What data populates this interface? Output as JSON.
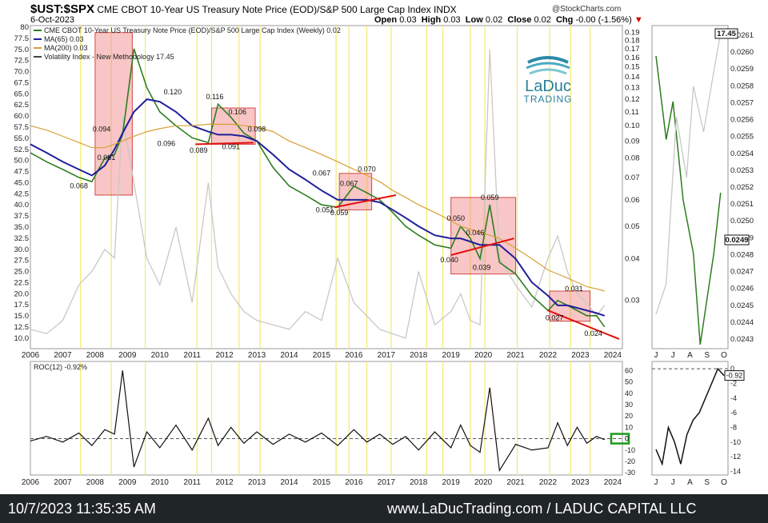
{
  "header": {
    "symbol": "$UST:$SPX",
    "title": "CME CBOT 10-Year US Treasury Note Price (EOD)/S&P 500 Large Cap Index INDX",
    "date": "6-Oct-2023",
    "ohlc": {
      "open_label": "Open",
      "open": "0.03",
      "high_label": "High",
      "high": "0.03",
      "low_label": "Low",
      "low": "0.02",
      "close_label": "Close",
      "close": "0.02",
      "chg_label": "Chg",
      "chg": "-0.00 (-1.56%)"
    },
    "source": "@StockCharts.com"
  },
  "logo": {
    "line1": "LaDuc",
    "line2": "TRADING"
  },
  "colors": {
    "ratio": "#2e7d1f",
    "ma65": "#1f1f9a",
    "ma200": "#d9a036",
    "vix": "#c8c8c8",
    "box": "#f08080",
    "vline": "#f2ea70",
    "trend": "#e01010"
  },
  "legend": [
    {
      "label": "CME CBOT 10-Year US Treasury Note Price (EOD)/S&P 500 Large Cap Index (Weekly) 0.02",
      "color": "#2e7d1f"
    },
    {
      "label": "MA(65) 0.03",
      "color": "#1f1f9a"
    },
    {
      "label": "MA(200) 0.03",
      "color": "#d9a036"
    },
    {
      "label": "Volatility Index - New Methodology 17.45",
      "color": "#444444"
    }
  ],
  "roc": {
    "label": "ROC(12) -0.92%",
    "value": "-0.92",
    "current_box": "0"
  },
  "side": {
    "last": "17.45",
    "ratio_last": "0.0249",
    "roc_last": "-0.92"
  },
  "footer": {
    "timestamp": "10/7/2023 11:35:35 AM",
    "site": "www.LaDucTrading.com / LADUC CAPITAL LLC"
  },
  "chart_data": [
    {
      "type": "line",
      "name": "main",
      "x": [
        2006,
        2006.5,
        2007,
        2007.5,
        2007.9,
        2008.3,
        2008.6,
        2008.85,
        2009.2,
        2009.6,
        2010,
        2010.5,
        2011,
        2011.5,
        2011.8,
        2012.2,
        2012.6,
        2013,
        2013.5,
        2014,
        2014.5,
        2015,
        2015.5,
        2016,
        2016.4,
        2016.8,
        2017.2,
        2017.6,
        2018,
        2018.5,
        2019,
        2019.3,
        2019.6,
        2019.9,
        2020.2,
        2020.5,
        2021,
        2021.5,
        2022,
        2022.3,
        2022.6,
        2022.9,
        2023.2,
        2023.5,
        2023.75
      ],
      "series": [
        {
          "name": "CME CBOT 10-Year US Treasury Note Price (EOD)/S&P 500 Large Cap Index (Weekly)",
          "values": [
            0.083,
            0.078,
            0.074,
            0.07,
            0.068,
            0.08,
            0.082,
            0.094,
            0.17,
            0.13,
            0.11,
            0.1,
            0.092,
            0.089,
            0.116,
            0.106,
            0.095,
            0.09,
            0.075,
            0.066,
            0.062,
            0.058,
            0.057,
            0.066,
            0.063,
            0.06,
            0.055,
            0.05,
            0.047,
            0.044,
            0.043,
            0.05,
            0.046,
            0.04,
            0.058,
            0.039,
            0.036,
            0.031,
            0.028,
            0.03,
            0.029,
            0.028,
            0.027,
            0.027,
            0.025
          ]
        },
        {
          "name": "MA(65)",
          "values": [
            0.088,
            0.083,
            0.078,
            0.074,
            0.071,
            0.076,
            0.085,
            0.095,
            0.11,
            0.12,
            0.118,
            0.11,
            0.1,
            0.096,
            0.094,
            0.094,
            0.093,
            0.09,
            0.082,
            0.074,
            0.069,
            0.064,
            0.06,
            0.06,
            0.06,
            0.059,
            0.056,
            0.053,
            0.05,
            0.047,
            0.046,
            0.046,
            0.045,
            0.044,
            0.044,
            0.044,
            0.04,
            0.034,
            0.031,
            0.029,
            0.029,
            0.0285,
            0.028,
            0.0275,
            0.027
          ]
        },
        {
          "name": "MA(200)",
          "values": [
            0.1,
            0.097,
            0.093,
            0.089,
            0.086,
            0.086,
            0.088,
            0.09,
            0.093,
            0.096,
            0.098,
            0.1,
            0.1,
            0.101,
            0.101,
            0.101,
            0.1,
            0.099,
            0.096,
            0.09,
            0.086,
            0.082,
            0.078,
            0.074,
            0.071,
            0.068,
            0.064,
            0.061,
            0.058,
            0.055,
            0.052,
            0.05,
            0.049,
            0.048,
            0.047,
            0.046,
            0.043,
            0.04,
            0.037,
            0.036,
            0.035,
            0.034,
            0.033,
            0.0325,
            0.032
          ]
        }
      ],
      "vix": {
        "name": "Volatility Index - New Methodology",
        "values": [
          12,
          11,
          14,
          22,
          25,
          30,
          28,
          60,
          45,
          28,
          22,
          35,
          18,
          45,
          26,
          20,
          16,
          14,
          13,
          12,
          16,
          14,
          28,
          18,
          15,
          12,
          11,
          10,
          25,
          13,
          16,
          20,
          14,
          13,
          75,
          28,
          22,
          17,
          28,
          33,
          25,
          20,
          18,
          15,
          17.45
        ]
      },
      "annotations": [
        "0.068",
        "0.081",
        "0.094",
        "0.120",
        "0.096",
        "0.089",
        "0.116",
        "0.091",
        "0.106",
        "0.098",
        "0.067",
        "0.051",
        "0.067",
        "0.070",
        "0.059",
        "0.050",
        "0.046",
        "0.059",
        "0.040",
        "0.039",
        "0.031",
        "0.027",
        "0.024"
      ],
      "left_ticks": [
        "80",
        "77.5",
        "75.0",
        "72.5",
        "70.0",
        "67.5",
        "65.0",
        "62.5",
        "60.0",
        "57.5",
        "55.0",
        "52.5",
        "50.0",
        "47.5",
        "45.0",
        "42.5",
        "40.0",
        "37.5",
        "35.0",
        "32.5",
        "30.0",
        "27.5",
        "25.0",
        "22.5",
        "20.0",
        "17.5",
        "15.0",
        "12.5",
        "10.0"
      ],
      "right_ticks": [
        "0.19",
        "0.18",
        "0.17",
        "0.16",
        "0.15",
        "0.14",
        "0.13",
        "0.12",
        "0.11",
        "0.10",
        "0.09",
        "0.08",
        "0.07",
        "0.06",
        "0.05",
        "0.04",
        "0.03"
      ],
      "x_ticks": [
        "2006",
        "2007",
        "2008",
        "2009",
        "2010",
        "2011",
        "2012",
        "2013",
        "2014",
        "2015",
        "2016",
        "2017",
        "2018",
        "2019",
        "2020",
        "2021",
        "2022",
        "2023",
        "2024"
      ],
      "log_scale": true
    },
    {
      "type": "line",
      "name": "roc",
      "title": "ROC(12) -0.92%",
      "y_ticks": [
        "60",
        "50",
        "40",
        "30",
        "20",
        "10",
        "0",
        "-10",
        "-20",
        "-30"
      ],
      "ylim": [
        -32,
        68
      ]
    },
    {
      "type": "line",
      "name": "side-main",
      "x_ticks": [
        "J",
        "J",
        "A",
        "S",
        "O"
      ],
      "ratio_ticks": [
        "0.0261",
        "0.0260",
        "0.0259",
        "0.0258",
        "0.0257",
        "0.0256",
        "0.0255",
        "0.0254",
        "0.0253",
        "0.0252",
        "0.0251",
        "0.0250",
        "0.0249",
        "0.0248",
        "0.0247",
        "0.0246",
        "0.0245",
        "0.0244",
        "0.0243"
      ]
    },
    {
      "type": "line",
      "name": "side-roc",
      "x_ticks": [
        "J",
        "J",
        "A",
        "S",
        "O"
      ],
      "y_ticks": [
        "0",
        "-2",
        "-4",
        "-6",
        "-8",
        "-10",
        "-12",
        "-14"
      ],
      "values": [
        -11,
        -13,
        -8,
        -10,
        -13,
        -9,
        -7,
        -6,
        -4,
        -2,
        0,
        -0.92
      ],
      "ylim": [
        -14.5,
        1
      ]
    }
  ]
}
